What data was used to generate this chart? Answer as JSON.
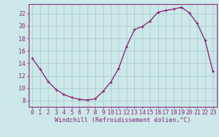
{
  "x": [
    0,
    1,
    2,
    3,
    4,
    5,
    6,
    7,
    8,
    9,
    10,
    11,
    12,
    13,
    14,
    15,
    16,
    17,
    18,
    19,
    20,
    21,
    22,
    23
  ],
  "y": [
    14.8,
    13.0,
    11.1,
    9.8,
    9.0,
    8.5,
    8.2,
    8.1,
    8.3,
    9.5,
    11.0,
    13.2,
    16.7,
    19.4,
    19.9,
    20.8,
    22.2,
    22.5,
    22.7,
    23.0,
    22.1,
    20.4,
    17.7,
    12.7
  ],
  "line_color": "#882277",
  "marker": "+",
  "bg_color": "#cce8e8",
  "grid_color": "#aacccc",
  "axis_color": "#882277",
  "tick_label_color": "#882277",
  "xlabel": "Windchill (Refroidissement éolien,°C)",
  "ylim": [
    7,
    23.5
  ],
  "yticks": [
    8,
    10,
    12,
    14,
    16,
    18,
    20,
    22
  ],
  "xticks": [
    0,
    1,
    2,
    3,
    4,
    5,
    6,
    7,
    8,
    9,
    10,
    11,
    12,
    13,
    14,
    15,
    16,
    17,
    18,
    19,
    20,
    21,
    22,
    23
  ],
  "xlabel_fontsize": 6.5,
  "tick_fontsize": 6.0
}
